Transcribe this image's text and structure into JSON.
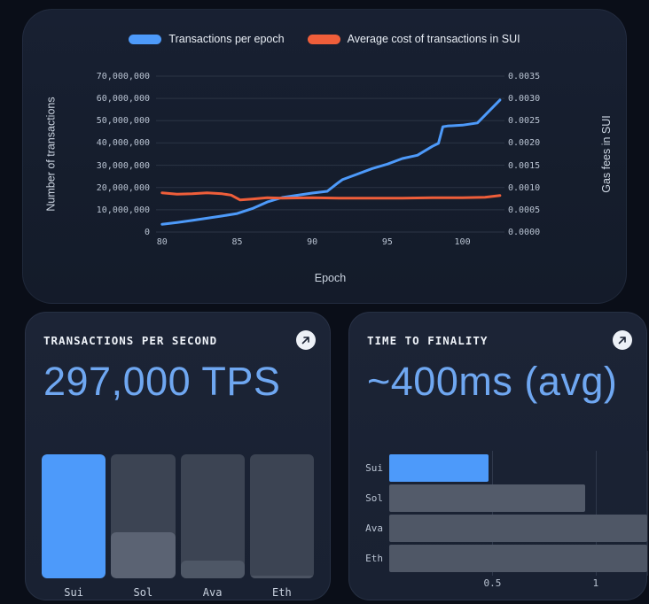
{
  "theme": {
    "page_bg": "#0a0e18",
    "panel_bg": "#151d2c",
    "card_bg": "#1a2233",
    "grid": "#2b3444",
    "tick_text": "#b9c3d2",
    "accent_blue": "#4d9afa",
    "accent_orange": "#ef5e3a",
    "big_text": "#6fa7f1",
    "bar_track": "#3c4453"
  },
  "top_chart": {
    "legend": [
      {
        "label": "Transactions per epoch",
        "color": "#4d9afa"
      },
      {
        "label": "Average cost of transactions in SUI",
        "color": "#ef5e3a"
      }
    ]
  },
  "tps_card": {
    "title": "TRANSACTIONS PER SECOND",
    "value": "297,000 TPS",
    "link_icon": "arrow-up-right-icon"
  },
  "finality_card": {
    "title": "TIME TO FINALITY",
    "value": "~400ms (avg)",
    "link_icon": "arrow-up-right-icon"
  },
  "chart_data": [
    {
      "id": "transactions-and-gas-by-epoch",
      "type": "line",
      "xlabel": "Epoch",
      "ylabel_left": "Number of transactions",
      "ylabel_right": "Gas fees in SUI",
      "xlim": [
        79.6,
        102.8
      ],
      "x_ticks": [
        80,
        85,
        90,
        95,
        100
      ],
      "grid": "horizontal",
      "legend_position": "top-center",
      "y_left": {
        "lim": [
          0,
          70000000
        ],
        "tick_labels_top_to_bottom": [
          "70,000,000",
          "60,000,000",
          "50,000,000",
          "40,000,000",
          "30,000,000",
          "20,000,000",
          "10,000,000",
          "0"
        ]
      },
      "y_right": {
        "lim": [
          0,
          0.0035
        ],
        "tick_labels_top_to_bottom": [
          "0.0035",
          "0.0030",
          "0.0025",
          "0.0020",
          "0.0015",
          "0.0010",
          "0.0005",
          "0.0000"
        ]
      },
      "series": [
        {
          "name": "Transactions per epoch",
          "axis": "left",
          "color": "#4d9afa",
          "points": [
            [
              80,
              3500000
            ],
            [
              81,
              4300000
            ],
            [
              82,
              5200000
            ],
            [
              83,
              6200000
            ],
            [
              84,
              7200000
            ],
            [
              85,
              8300000
            ],
            [
              86,
              10500000
            ],
            [
              87,
              13500000
            ],
            [
              88,
              15500000
            ],
            [
              89,
              16500000
            ],
            [
              90,
              17500000
            ],
            [
              91,
              18300000
            ],
            [
              91.6,
              21500000
            ],
            [
              92,
              23500000
            ],
            [
              93,
              26000000
            ],
            [
              94,
              28500000
            ],
            [
              95,
              30500000
            ],
            [
              96,
              33000000
            ],
            [
              97,
              34500000
            ],
            [
              98,
              38500000
            ],
            [
              98.4,
              39800000
            ],
            [
              98.7,
              47300000
            ],
            [
              99,
              47600000
            ],
            [
              100,
              48000000
            ],
            [
              101,
              49000000
            ],
            [
              102.5,
              59300000
            ]
          ]
        },
        {
          "name": "Average cost of transactions in SUI",
          "axis": "right",
          "color": "#ef5e3a",
          "points": [
            [
              80,
              0.00088
            ],
            [
              81,
              0.00085
            ],
            [
              82,
              0.00086
            ],
            [
              83,
              0.00088
            ],
            [
              84,
              0.00086
            ],
            [
              84.6,
              0.00083
            ],
            [
              85.2,
              0.00072
            ],
            [
              86,
              0.00074
            ],
            [
              87,
              0.00077
            ],
            [
              88,
              0.00076
            ],
            [
              90,
              0.00077
            ],
            [
              92,
              0.00076
            ],
            [
              94,
              0.00076
            ],
            [
              96,
              0.00076
            ],
            [
              98,
              0.00077
            ],
            [
              100,
              0.00077
            ],
            [
              101.5,
              0.00078
            ],
            [
              102.5,
              0.00082
            ]
          ]
        }
      ]
    },
    {
      "id": "tps-comparison",
      "type": "bar",
      "categories": [
        "Sui",
        "Sol",
        "Ava",
        "Eth"
      ],
      "values_relative": [
        1.0,
        0.37,
        0.14,
        0.025
      ],
      "highlight_category": "Sui",
      "bar_colors": [
        "#4d9afa",
        "#5b6373",
        "#4e5766",
        "#4b5362"
      ],
      "track_color": "#3c4453"
    },
    {
      "id": "time-to-finality-seconds",
      "type": "hbar",
      "categories": [
        "Sui",
        "Sol",
        "Ava",
        "Eth"
      ],
      "values": [
        0.48,
        0.95,
        1.25,
        1.25
      ],
      "clipped_at_xmax": [
        "Ava",
        "Eth"
      ],
      "xlim": [
        0,
        1.25
      ],
      "x_ticks": [
        0.5,
        1
      ],
      "x_tick_labels": [
        "0.5",
        "1"
      ],
      "bar_colors": [
        "#4d9afa",
        "#535b6a",
        "#4f5766",
        "#4f5766"
      ]
    }
  ]
}
